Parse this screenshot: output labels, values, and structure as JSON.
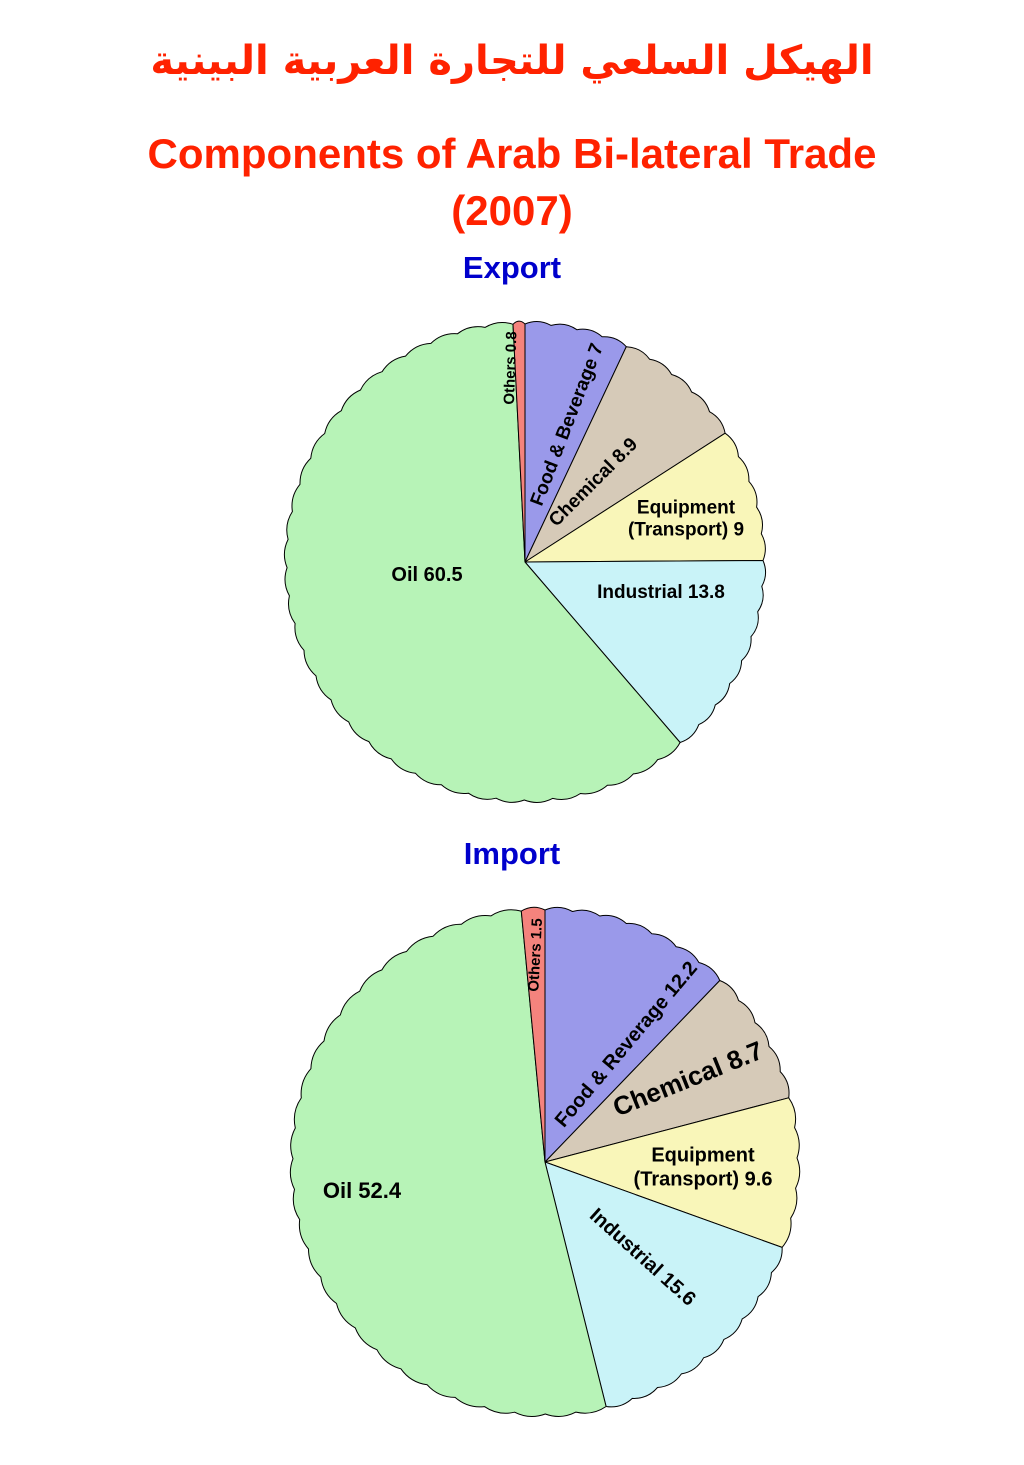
{
  "page": {
    "title_ar": "الهيكل السلعي للتجارة العربية البينية",
    "title_en_line1": "Components of Arab Bi-lateral Trade",
    "title_en_line2": "(2007)",
    "title_color": "#ff2200",
    "heading_color": "#0000cc"
  },
  "chart_data": [
    {
      "type": "pie",
      "title": "Export",
      "legend_position": "none",
      "slices": [
        {
          "name": "Food & Beverage",
          "value": 7,
          "label": "Food & Beverage 7",
          "color": "#9a99ea"
        },
        {
          "name": "Chemical",
          "value": 8.9,
          "label": "Chemical 8.9",
          "color": "#d6cab8"
        },
        {
          "name": "Equipment (Transport)",
          "value": 9,
          "label": "Equipment\n(Transport) 9",
          "color": "#f9f6b9"
        },
        {
          "name": "Industrial",
          "value": 13.8,
          "label": "Industrial 13.8",
          "color": "#c9f3f8"
        },
        {
          "name": "Oil",
          "value": 60.5,
          "label": "Oil 60.5",
          "color": "#b7f3b7"
        },
        {
          "name": "Others",
          "value": 0.8,
          "label": "Others 0.8",
          "color": "#f4837d"
        }
      ]
    },
    {
      "type": "pie",
      "title": "Import",
      "legend_position": "none",
      "slices": [
        {
          "name": "Food & Reverage",
          "value": 12.2,
          "label": "Food & Reverage 12.2",
          "color": "#9a99ea"
        },
        {
          "name": "Chemical",
          "value": 8.7,
          "label": "Chemical 8.7",
          "color": "#d6cab8"
        },
        {
          "name": "Equipment (Transport)",
          "value": 9.6,
          "label": "Equipment\n(Transport) 9.6",
          "color": "#f9f6b9"
        },
        {
          "name": "Industrial",
          "value": 15.6,
          "label": "Industrial 15.6",
          "color": "#c9f3f8"
        },
        {
          "name": "Oil",
          "value": 52.4,
          "label": "Oil 52.4",
          "color": "#b7f3b7"
        },
        {
          "name": "Others",
          "value": 1.5,
          "label": "Others 1.5",
          "color": "#f4837d"
        }
      ]
    }
  ]
}
